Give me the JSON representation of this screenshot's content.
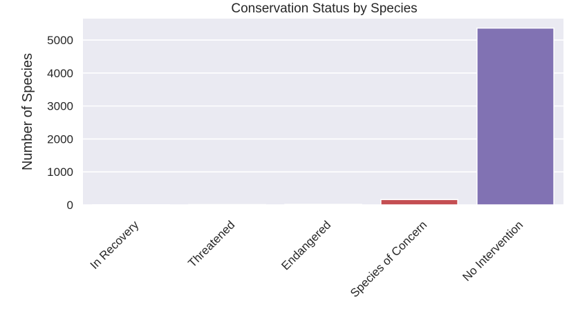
{
  "chart_data": {
    "type": "bar",
    "title": "Conservation Status by Species",
    "xlabel": "",
    "ylabel": "Number of Species",
    "categories": [
      "In Recovery",
      "Threatened",
      "Endangered",
      "Species of Concern",
      "No Intervention"
    ],
    "values": [
      4,
      10,
      16,
      161,
      5363
    ],
    "colors": [
      "#4c72b0",
      "#dd8452",
      "#55a868",
      "#c44e52",
      "#8172b3"
    ],
    "ylim": [
      0,
      5650
    ],
    "yticks": [
      0,
      1000,
      2000,
      3000,
      4000,
      5000
    ],
    "grid": true,
    "legend": "none",
    "background": "#eaeaf2"
  }
}
